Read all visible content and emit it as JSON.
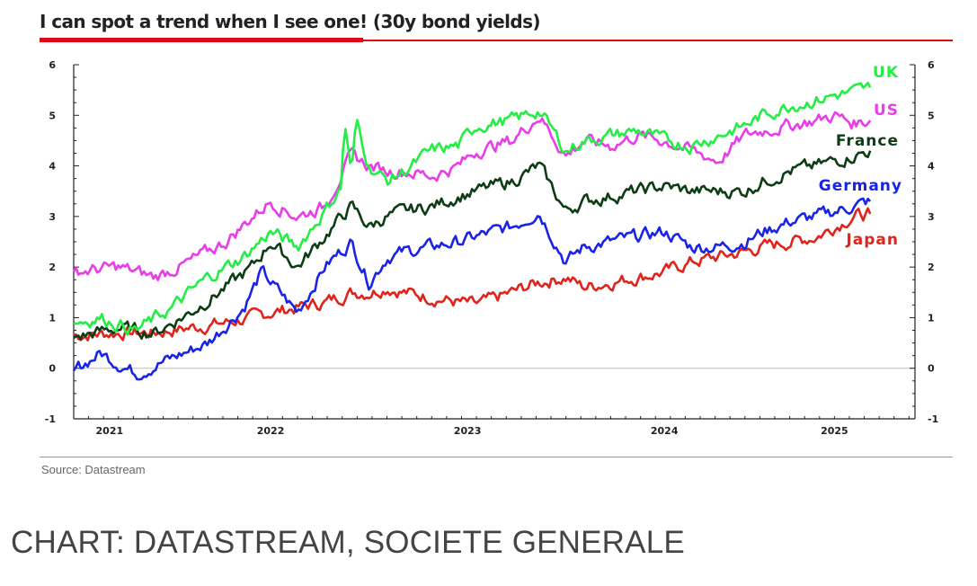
{
  "header": {
    "title": "I can spot a trend when I see one! (30y bond yields)"
  },
  "footer": {
    "source": "Source: Datastream",
    "caption": "CHART: DATASTREAM, SOCIETE GENERALE"
  },
  "chart_data": {
    "type": "line",
    "title": "I can spot a trend when I see one! (30y bond yields)",
    "xlabel": "",
    "ylabel": "",
    "xlim": [
      2020.75,
      2025.45
    ],
    "ylim": [
      -1,
      6
    ],
    "yticks": [
      -1,
      0,
      1,
      2,
      3,
      4,
      5,
      6
    ],
    "xticks": [
      {
        "label": "2021",
        "x": 2020.95
      },
      {
        "label": "2022",
        "x": 2021.85
      },
      {
        "label": "2023",
        "x": 2022.95
      },
      {
        "label": "2024",
        "x": 2024.05
      },
      {
        "label": "2025",
        "x": 2025.0
      }
    ],
    "grid": false,
    "zero_line": true,
    "legend": "inline-right",
    "series": [
      {
        "name": "UK",
        "color": "#22ee44",
        "x": [
          2020.75,
          2020.9,
          2021.1,
          2021.3,
          2021.5,
          2021.7,
          2021.85,
          2022.0,
          2022.15,
          2022.25,
          2022.26,
          2022.3,
          2022.33,
          2022.4,
          2022.5,
          2022.6,
          2022.75,
          2022.9,
          2023.0,
          2023.2,
          2023.35,
          2023.5,
          2023.6,
          2023.75,
          2023.9,
          2024.05,
          2024.2,
          2024.35,
          2024.5,
          2024.6,
          2024.75,
          2024.9,
          2025.0,
          2025.1,
          2025.2
        ],
        "y": [
          0.9,
          1.0,
          0.75,
          1.2,
          1.8,
          2.2,
          2.7,
          2.4,
          3.1,
          3.6,
          5.0,
          3.8,
          4.9,
          4.0,
          3.7,
          3.9,
          4.3,
          4.4,
          4.8,
          4.9,
          5.1,
          4.3,
          4.5,
          4.6,
          4.7,
          4.5,
          4.4,
          4.6,
          4.8,
          5.0,
          5.2,
          5.3,
          5.4,
          5.45,
          5.55
        ]
      },
      {
        "name": "US",
        "color": "#e83ee8",
        "x": [
          2020.75,
          2021.0,
          2021.2,
          2021.4,
          2021.6,
          2021.75,
          2021.85,
          2022.0,
          2022.15,
          2022.3,
          2022.4,
          2022.5,
          2022.6,
          2022.75,
          2022.9,
          2023.0,
          2023.2,
          2023.35,
          2023.5,
          2023.6,
          2023.75,
          2023.9,
          2024.05,
          2024.2,
          2024.35,
          2024.5,
          2024.6,
          2024.75,
          2024.9,
          2025.0,
          2025.1,
          2025.2
        ],
        "y": [
          1.9,
          2.0,
          1.8,
          2.1,
          2.5,
          3.0,
          3.3,
          3.0,
          3.2,
          4.2,
          4.0,
          3.9,
          3.9,
          3.8,
          4.0,
          4.3,
          4.5,
          5.0,
          4.2,
          4.5,
          4.4,
          4.6,
          4.5,
          4.3,
          4.1,
          4.6,
          4.7,
          4.8,
          4.9,
          5.0,
          4.85,
          4.9
        ]
      },
      {
        "name": "France",
        "color": "#0d3d14",
        "x": [
          2020.75,
          2021.0,
          2021.2,
          2021.4,
          2021.6,
          2021.75,
          2021.85,
          2022.0,
          2022.15,
          2022.3,
          2022.4,
          2022.5,
          2022.6,
          2022.75,
          2022.9,
          2023.0,
          2023.2,
          2023.35,
          2023.5,
          2023.6,
          2023.75,
          2023.9,
          2024.05,
          2024.2,
          2024.35,
          2024.5,
          2024.6,
          2024.75,
          2024.9,
          2025.0,
          2025.1,
          2025.2
        ],
        "y": [
          0.6,
          0.8,
          0.7,
          1.1,
          1.6,
          2.0,
          2.5,
          2.0,
          2.6,
          3.2,
          2.8,
          3.0,
          3.1,
          3.2,
          3.4,
          3.5,
          3.7,
          4.0,
          3.1,
          3.3,
          3.4,
          3.5,
          3.6,
          3.5,
          3.5,
          3.5,
          3.7,
          3.9,
          4.0,
          4.1,
          4.2,
          4.3
        ]
      },
      {
        "name": "Germany",
        "color": "#1a24e6",
        "x": [
          2020.75,
          2020.9,
          2021.1,
          2021.3,
          2021.5,
          2021.7,
          2021.8,
          2021.9,
          2022.0,
          2022.15,
          2022.3,
          2022.4,
          2022.5,
          2022.6,
          2022.75,
          2022.9,
          2023.0,
          2023.2,
          2023.35,
          2023.5,
          2023.6,
          2023.75,
          2023.9,
          2024.05,
          2024.2,
          2024.35,
          2024.5,
          2024.6,
          2024.75,
          2024.9,
          2025.0,
          2025.1,
          2025.2
        ],
        "y": [
          -0.05,
          0.3,
          -0.1,
          0.2,
          0.5,
          1.2,
          1.9,
          1.5,
          1.1,
          2.0,
          2.5,
          1.7,
          2.2,
          2.3,
          2.4,
          2.5,
          2.6,
          2.8,
          3.1,
          2.1,
          2.4,
          2.5,
          2.6,
          2.7,
          2.4,
          2.4,
          2.5,
          2.7,
          2.9,
          3.0,
          3.1,
          3.2,
          3.3
        ]
      },
      {
        "name": "Japan",
        "color": "#e0241c",
        "x": [
          2020.75,
          2021.0,
          2021.2,
          2021.4,
          2021.6,
          2021.75,
          2021.85,
          2022.0,
          2022.15,
          2022.3,
          2022.4,
          2022.5,
          2022.6,
          2022.75,
          2022.9,
          2023.0,
          2023.2,
          2023.35,
          2023.5,
          2023.6,
          2023.75,
          2023.9,
          2024.05,
          2024.2,
          2024.35,
          2024.5,
          2024.6,
          2024.75,
          2024.9,
          2025.0,
          2025.1,
          2025.2
        ],
        "y": [
          0.65,
          0.7,
          0.7,
          0.8,
          0.9,
          1.0,
          1.1,
          1.2,
          1.3,
          1.5,
          1.5,
          1.6,
          1.5,
          1.4,
          1.3,
          1.25,
          1.5,
          1.7,
          1.8,
          1.6,
          1.7,
          1.8,
          1.9,
          2.1,
          2.2,
          2.3,
          2.4,
          2.5,
          2.6,
          2.8,
          3.0,
          3.05
        ]
      }
    ]
  }
}
